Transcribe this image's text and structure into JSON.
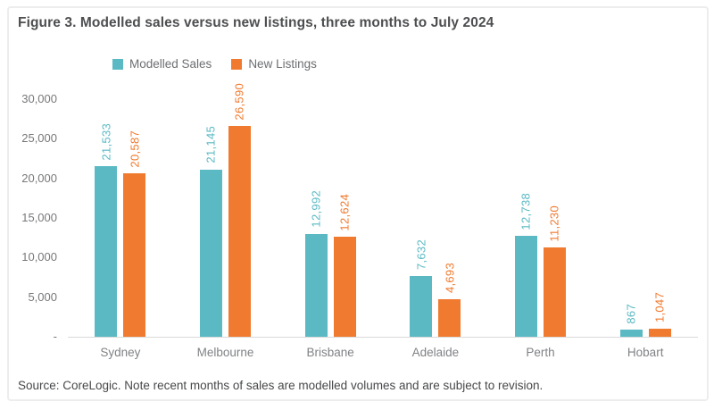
{
  "figure": {
    "title": "Figure 3. Modelled sales versus new listings, three months to July 2024",
    "source": "Source: CoreLogic. Note recent months of sales are modelled volumes and are subject to revision."
  },
  "colors": {
    "modelled_sales": "#5bb9c4",
    "new_listings": "#f07a2f",
    "axis_text": "#77787b",
    "baseline": "#d9dadb"
  },
  "chart_data": {
    "type": "bar",
    "title": "Figure 3. Modelled sales versus new listings, three months to July 2024",
    "categories": [
      "Sydney",
      "Melbourne",
      "Brisbane",
      "Adelaide",
      "Perth",
      "Hobart"
    ],
    "series": [
      {
        "name": "Modelled Sales",
        "color": "#5bb9c4",
        "values": [
          21533,
          21145,
          12992,
          7632,
          12738,
          867
        ],
        "labels": [
          "21,533",
          "21,145",
          "12,992",
          "7,632",
          "12,738",
          "867"
        ]
      },
      {
        "name": "New Listings",
        "color": "#f07a2f",
        "values": [
          20587,
          26590,
          12624,
          4693,
          11230,
          1047
        ],
        "labels": [
          "20,587",
          "26,590",
          "12,624",
          "4,693",
          "11,230",
          "1,047"
        ]
      }
    ],
    "xlabel": "",
    "ylabel": "",
    "ylim": [
      0,
      30000
    ],
    "yticks": [
      {
        "value": 30000,
        "label": "30,000"
      },
      {
        "value": 25000,
        "label": "25,000"
      },
      {
        "value": 20000,
        "label": "20,000"
      },
      {
        "value": 15000,
        "label": "15,000"
      },
      {
        "value": 10000,
        "label": "10,000"
      },
      {
        "value": 5000,
        "label": "5,000"
      },
      {
        "value": 0,
        "label": "-"
      }
    ],
    "grid": false,
    "legend_position": "top-left",
    "data_label_rotation": -90
  }
}
